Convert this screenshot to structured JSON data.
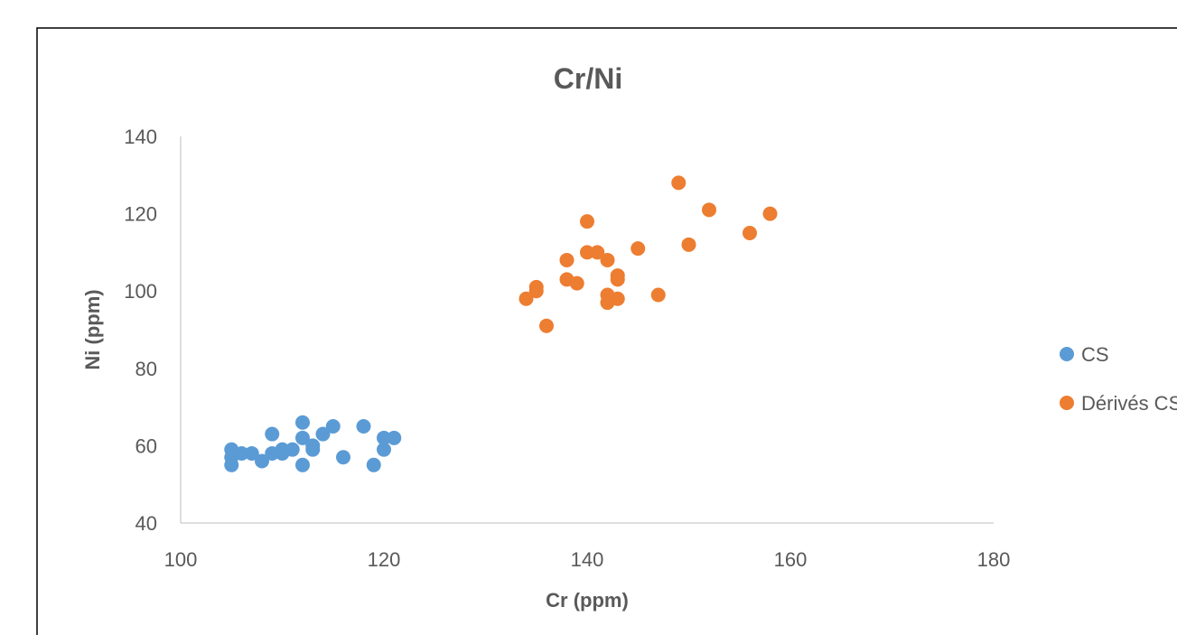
{
  "chart_data": {
    "type": "scatter",
    "title": "Cr/Ni",
    "xlabel": "Cr (ppm)",
    "ylabel": "Ni (ppm)",
    "xlim": [
      100,
      180
    ],
    "ylim": [
      40,
      140
    ],
    "xticks": [
      100,
      120,
      140,
      160,
      180
    ],
    "yticks": [
      40,
      60,
      80,
      100,
      120,
      140
    ],
    "grid": false,
    "legend_position": "right",
    "series": [
      {
        "name": "CS",
        "color": "#5B9BD5",
        "points": [
          [
            105,
            59
          ],
          [
            105,
            57
          ],
          [
            105,
            55
          ],
          [
            106,
            58
          ],
          [
            107,
            58
          ],
          [
            108,
            56
          ],
          [
            109,
            58
          ],
          [
            109,
            63
          ],
          [
            110,
            59
          ],
          [
            110,
            58
          ],
          [
            111,
            59
          ],
          [
            112,
            66
          ],
          [
            112,
            62
          ],
          [
            112,
            55
          ],
          [
            113,
            60
          ],
          [
            113,
            59
          ],
          [
            114,
            63
          ],
          [
            115,
            65
          ],
          [
            116,
            57
          ],
          [
            118,
            65
          ],
          [
            119,
            55
          ],
          [
            120,
            62
          ],
          [
            120,
            59
          ],
          [
            121,
            62
          ]
        ]
      },
      {
        "name": "Dérivés CS",
        "color": "#ED7D31",
        "points": [
          [
            134,
            98
          ],
          [
            135,
            101
          ],
          [
            135,
            100
          ],
          [
            136,
            91
          ],
          [
            138,
            108
          ],
          [
            138,
            103
          ],
          [
            139,
            102
          ],
          [
            140,
            118
          ],
          [
            140,
            110
          ],
          [
            141,
            110
          ],
          [
            142,
            108
          ],
          [
            142,
            99
          ],
          [
            142,
            97
          ],
          [
            143,
            104
          ],
          [
            143,
            103
          ],
          [
            143,
            98
          ],
          [
            145,
            111
          ],
          [
            147,
            99
          ],
          [
            149,
            128
          ],
          [
            150,
            112
          ],
          [
            152,
            121
          ],
          [
            156,
            115
          ],
          [
            158,
            120
          ]
        ]
      }
    ]
  }
}
